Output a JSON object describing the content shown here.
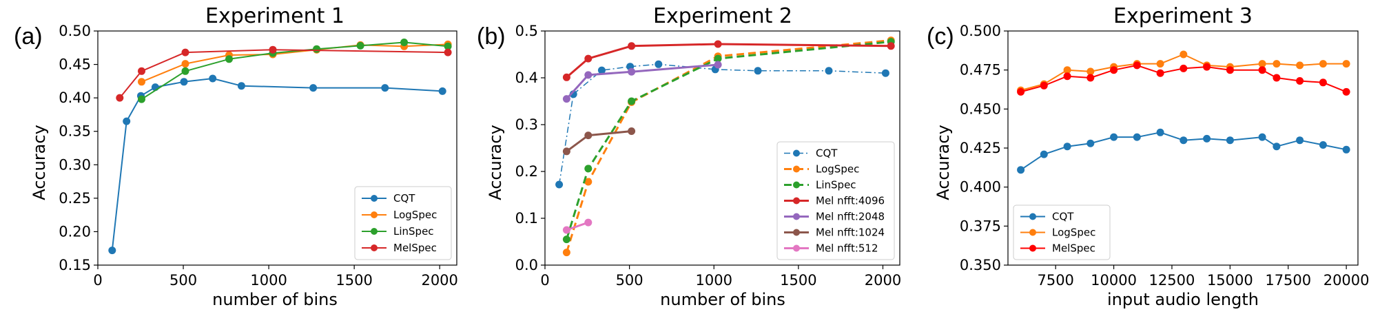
{
  "colors": {
    "blue": "#1f77b4",
    "orange": "#ff7f0e",
    "green": "#2ca02c",
    "red": "#d62728",
    "purple": "#9467bd",
    "brown": "#8c564b",
    "pink": "#e377c2",
    "bright_red": "#ff0000"
  },
  "panels": [
    {
      "letter": "(a)"
    },
    {
      "letter": "(b)"
    },
    {
      "letter": "(c)"
    }
  ],
  "chart_data": [
    {
      "type": "line",
      "title": "Experiment 1",
      "xlabel": "number of bins",
      "ylabel": "Accuracy",
      "xlim": [
        0,
        2100
      ],
      "ylim": [
        0.15,
        0.5
      ],
      "xticks": [
        0,
        500,
        1000,
        1500,
        2000
      ],
      "xtick_labels": [
        "0",
        "500",
        "1000",
        "1500",
        "2000"
      ],
      "yticks": [
        0.15,
        0.2,
        0.25,
        0.3,
        0.35,
        0.4,
        0.45,
        0.5
      ],
      "ytick_labels": [
        "0.15",
        "0.20",
        "0.25",
        "0.30",
        "0.35",
        "0.40",
        "0.45",
        "0.50"
      ],
      "legend_position": "lower-right",
      "series": [
        {
          "name": "CQT",
          "color": "#1f77b4",
          "dash": "solid",
          "width": 2,
          "x": [
            84,
            168,
            252,
            336,
            504,
            672,
            840,
            1260,
            1680,
            2016
          ],
          "y": [
            0.172,
            0.365,
            0.403,
            0.416,
            0.424,
            0.429,
            0.418,
            0.415,
            0.415,
            0.41
          ]
        },
        {
          "name": "LogSpec",
          "color": "#ff7f0e",
          "dash": "solid",
          "width": 2,
          "x": [
            256,
            512,
            768,
            1024,
            1280,
            1536,
            1792,
            2048
          ],
          "y": [
            0.424,
            0.451,
            0.464,
            0.465,
            0.472,
            0.479,
            0.477,
            0.48
          ]
        },
        {
          "name": "LinSpec",
          "color": "#2ca02c",
          "dash": "solid",
          "width": 2,
          "x": [
            256,
            512,
            768,
            1024,
            1280,
            1536,
            1792,
            2048
          ],
          "y": [
            0.398,
            0.44,
            0.458,
            0.467,
            0.473,
            0.478,
            0.483,
            0.477
          ]
        },
        {
          "name": "MelSpec",
          "color": "#d62728",
          "dash": "solid",
          "width": 2,
          "x": [
            128,
            256,
            512,
            1024,
            2048
          ],
          "y": [
            0.4,
            0.44,
            0.468,
            0.472,
            0.468
          ]
        }
      ]
    },
    {
      "type": "line",
      "title": "Experiment 2",
      "xlabel": "number of bins",
      "ylabel": "Accuracy",
      "xlim": [
        0,
        2100
      ],
      "ylim": [
        0,
        0.5
      ],
      "xticks": [
        0,
        500,
        1000,
        1500,
        2000
      ],
      "xtick_labels": [
        "0",
        "500",
        "1000",
        "1500",
        "2000"
      ],
      "yticks": [
        0,
        0.1,
        0.2,
        0.3,
        0.4,
        0.5
      ],
      "ytick_labels": [
        "0.0",
        "0.1",
        "0.2",
        "0.3",
        "0.4",
        "0.5"
      ],
      "legend_position": "lower-right",
      "series": [
        {
          "name": "CQT",
          "color": "#1f77b4",
          "dash": "dashdot",
          "width": 1.5,
          "x": [
            84,
            168,
            336,
            504,
            672,
            1008,
            1260,
            1680,
            2016
          ],
          "y": [
            0.172,
            0.365,
            0.416,
            0.424,
            0.429,
            0.418,
            0.415,
            0.415,
            0.41
          ]
        },
        {
          "name": "LogSpec",
          "color": "#ff7f0e",
          "dash": "dashed",
          "width": 3,
          "x": [
            128,
            256,
            512,
            1024,
            2048
          ],
          "y": [
            0.027,
            0.178,
            0.348,
            0.446,
            0.48
          ]
        },
        {
          "name": "LinSpec",
          "color": "#2ca02c",
          "dash": "dashed",
          "width": 3,
          "x": [
            128,
            256,
            512,
            1024,
            2048
          ],
          "y": [
            0.055,
            0.206,
            0.35,
            0.441,
            0.477
          ]
        },
        {
          "name": "Mel nfft:4096",
          "color": "#d62728",
          "dash": "solid",
          "width": 3,
          "x": [
            128,
            256,
            512,
            1024,
            2048
          ],
          "y": [
            0.401,
            0.441,
            0.468,
            0.472,
            0.468
          ]
        },
        {
          "name": "Mel nfft:2048",
          "color": "#9467bd",
          "dash": "solid",
          "width": 3,
          "x": [
            128,
            256,
            512,
            1024
          ],
          "y": [
            0.355,
            0.406,
            0.413,
            0.428
          ]
        },
        {
          "name": "Mel nfft:1024",
          "color": "#8c564b",
          "dash": "solid",
          "width": 3,
          "x": [
            128,
            256,
            512
          ],
          "y": [
            0.243,
            0.277,
            0.286
          ]
        },
        {
          "name": "Mel nfft:512",
          "color": "#e377c2",
          "dash": "solid",
          "width": 3,
          "x": [
            128,
            256
          ],
          "y": [
            0.075,
            0.091
          ]
        }
      ]
    },
    {
      "type": "line",
      "title": "Experiment 3",
      "xlabel": "input audio length",
      "ylabel": "Accuracy",
      "xlim": [
        5450,
        20500
      ],
      "ylim": [
        0.35,
        0.5
      ],
      "xticks": [
        7500,
        10000,
        12500,
        15000,
        17500,
        20000
      ],
      "xtick_labels": [
        "7500",
        "10000",
        "12500",
        "15000",
        "17500",
        "20000"
      ],
      "yticks": [
        0.35,
        0.375,
        0.4,
        0.425,
        0.45,
        0.475,
        0.5
      ],
      "ytick_labels": [
        "0.350",
        "0.375",
        "0.400",
        "0.425",
        "0.450",
        "0.475",
        "0.500"
      ],
      "legend_position": "lower-left",
      "series": [
        {
          "name": "CQT",
          "color": "#1f77b4",
          "dash": "solid",
          "width": 2,
          "x": [
            6000,
            7000,
            8000,
            9000,
            10000,
            11000,
            12000,
            13000,
            14000,
            15000,
            16384,
            17000,
            18000,
            19000,
            20000
          ],
          "y": [
            0.411,
            0.421,
            0.426,
            0.428,
            0.432,
            0.432,
            0.435,
            0.43,
            0.431,
            0.43,
            0.432,
            0.426,
            0.43,
            0.427,
            0.424
          ]
        },
        {
          "name": "LogSpec",
          "color": "#ff7f0e",
          "dash": "solid",
          "width": 2,
          "x": [
            6000,
            7000,
            8000,
            9000,
            10000,
            11000,
            12000,
            13000,
            14000,
            15000,
            16384,
            17000,
            18000,
            19000,
            20000
          ],
          "y": [
            0.462,
            0.466,
            0.475,
            0.474,
            0.477,
            0.479,
            0.479,
            0.485,
            0.478,
            0.477,
            0.479,
            0.479,
            0.478,
            0.479,
            0.479
          ]
        },
        {
          "name": "MelSpec",
          "color": "#ff0000",
          "dash": "solid",
          "width": 2,
          "x": [
            6000,
            7000,
            8000,
            9000,
            10000,
            11000,
            12000,
            13000,
            14000,
            15000,
            16384,
            17000,
            18000,
            19000,
            20000
          ],
          "y": [
            0.461,
            0.465,
            0.471,
            0.47,
            0.475,
            0.478,
            0.473,
            0.476,
            0.477,
            0.475,
            0.475,
            0.47,
            0.468,
            0.467,
            0.461
          ]
        }
      ]
    }
  ]
}
